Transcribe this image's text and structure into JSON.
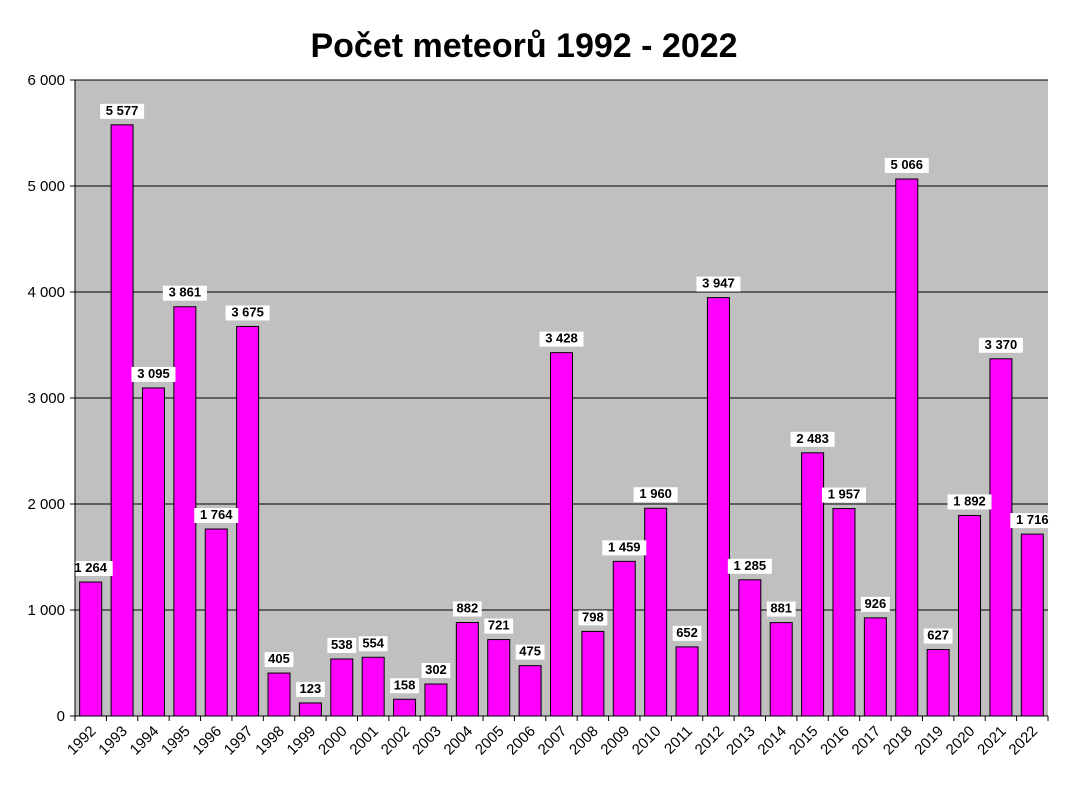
{
  "chart_data": {
    "type": "bar",
    "title": "Počet meteorů 1992 - 2022",
    "xlabel": "",
    "ylabel": "",
    "ylim": [
      0,
      6000
    ],
    "yticks": [
      0,
      1000,
      2000,
      3000,
      4000,
      5000,
      6000
    ],
    "ytick_labels": [
      "0",
      "1 000",
      "2 000",
      "3 000",
      "4 000",
      "5 000",
      "6 000"
    ],
    "grid": true,
    "legend": "none",
    "bar_color": "#ff00ff",
    "plot_background": "#c0c0c0",
    "categories": [
      "1992",
      "1993",
      "1994",
      "1995",
      "1996",
      "1997",
      "1998",
      "1999",
      "2000",
      "2001",
      "2002",
      "2003",
      "2004",
      "2005",
      "2006",
      "2007",
      "2008",
      "2009",
      "2010",
      "2011",
      "2012",
      "2013",
      "2014",
      "2015",
      "2016",
      "2017",
      "2018",
      "2019",
      "2020",
      "2021",
      "2022"
    ],
    "values": [
      1264,
      5577,
      3095,
      3861,
      1764,
      3675,
      405,
      123,
      538,
      554,
      158,
      302,
      882,
      721,
      475,
      3428,
      798,
      1459,
      1960,
      652,
      3947,
      1285,
      881,
      2483,
      1957,
      926,
      5066,
      627,
      1892,
      3370,
      1716
    ],
    "data_labels": [
      "1 264",
      "5 577",
      "3 095",
      "3 861",
      "1 764",
      "3 675",
      "405",
      "123",
      "538",
      "554",
      "158",
      "302",
      "882",
      "721",
      "475",
      "3 428",
      "798",
      "1 459",
      "1 960",
      "652",
      "3 947",
      "1 285",
      "881",
      "2 483",
      "1 957",
      "926",
      "5 066",
      "627",
      "1 892",
      "3 370",
      "1 716"
    ]
  }
}
